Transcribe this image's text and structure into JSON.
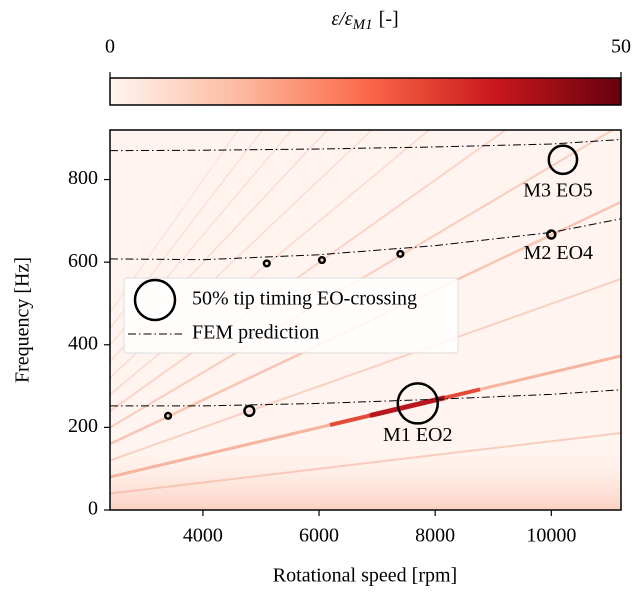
{
  "chart_data": {
    "type": "scatter",
    "colorbar": {
      "label": {
        "base": "ε/ε",
        "sub": "M1",
        "unit": "[-]"
      },
      "lim": [
        0,
        50
      ],
      "ticks": [
        0,
        50
      ],
      "colors": [
        "#fff5f0",
        "#fcbba1",
        "#fb6a4a",
        "#cb181d",
        "#67000d"
      ]
    },
    "xlabel": "Rotational speed [rpm]",
    "ylabel": "Frequency [Hz]",
    "xlim": [
      2400,
      11200
    ],
    "xticks": [
      4000,
      6000,
      8000,
      10000
    ],
    "ylim": [
      0,
      920
    ],
    "yticks": [
      0,
      200,
      400,
      600,
      800
    ],
    "legend_marker_size": 50,
    "series": [
      {
        "name": "50% tip timing EO-crossing",
        "type": "scatter",
        "color": "#000000",
        "x": [
          3400,
          4800,
          5100,
          6050,
          7400,
          10000,
          7700,
          10200
        ],
        "values": [
          228,
          240,
          597,
          605,
          620,
          667,
          258,
          848
        ],
        "sizes": [
          1,
          3,
          1,
          1,
          1,
          2,
          50,
          25
        ]
      },
      {
        "name": "FEM prediction",
        "type": "line",
        "color": "#000000",
        "x": [
          2400,
          4000,
          6000,
          8000,
          10000,
          11200
        ],
        "curves": [
          [
            252,
            252,
            258,
            268,
            280,
            291
          ],
          [
            608,
            606,
            618,
            640,
            672,
            705
          ],
          [
            870,
            871,
            874,
            879,
            886,
            897
          ]
        ]
      }
    ],
    "annotations": [
      "M1 EO2",
      "M2 EO4",
      "M3 EO5"
    ]
  }
}
